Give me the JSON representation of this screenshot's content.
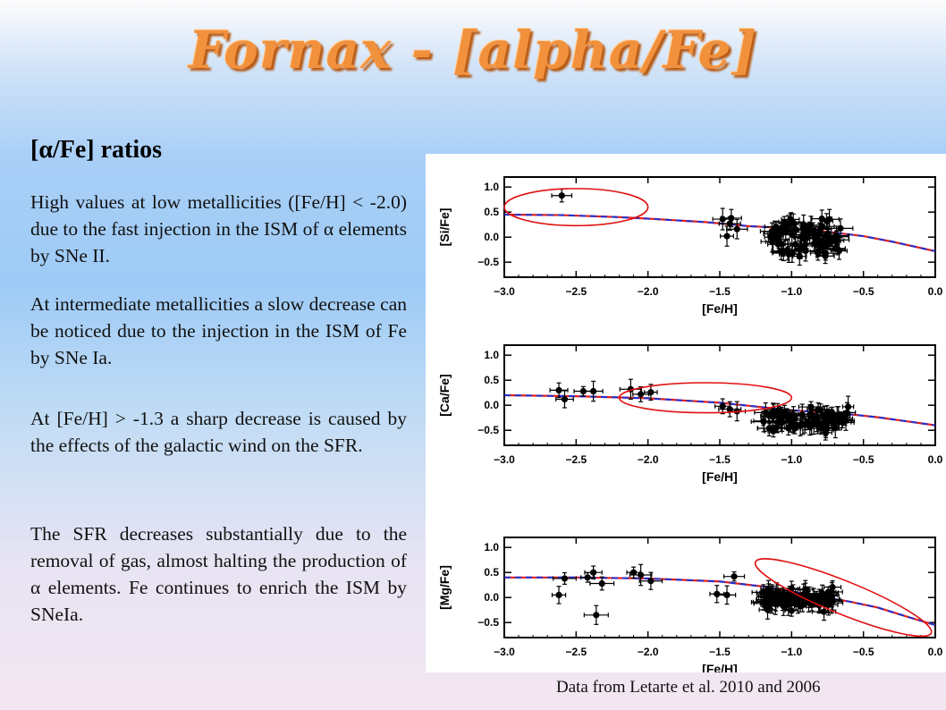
{
  "slide": {
    "title": "Fornax - [alpha/Fe]",
    "subtitle": "[α/Fe] ratios",
    "paragraphs": [
      "High values at low metallicities ([Fe/H] < -2.0) due to the fast injection in the ISM of α elements by SNe II.",
      "At intermediate metallicities a slow decrease can be noticed due to the injection in the ISM of Fe by SNe Ia.",
      "At [Fe/H] > -1.3 a sharp decrease is caused by the effects of the galactic wind on the SFR.",
      "The SFR decreases substantially due to the removal of gas, almost halting the production of α elements. Fe continues to enrich the ISM by SNeIa."
    ],
    "caption": "Data from Letarte et al. 2010 and 2006"
  },
  "chart_data": [
    {
      "type": "scatter",
      "xlabel": "[Fe/H]",
      "ylabel": "[Si/Fe]",
      "xlim": [
        -3.0,
        0.0
      ],
      "ylim": [
        -0.8,
        1.2
      ],
      "xticks": [
        "−3.0",
        "−2.5",
        "−2.0",
        "−1.5",
        "−1.0",
        "−0.5",
        "0.0"
      ],
      "yticks": [
        "1.0",
        "0.5",
        "0.0",
        "−0.5"
      ],
      "model": {
        "x": [
          -3.0,
          -2.6,
          -2.2,
          -2.0,
          -1.6,
          -1.3,
          -1.1,
          -0.9,
          -0.7,
          -0.5,
          -0.3,
          0.0
        ],
        "y": [
          0.45,
          0.44,
          0.4,
          0.37,
          0.3,
          0.22,
          0.19,
          0.15,
          0.09,
          0.02,
          -0.09,
          -0.28
        ]
      },
      "points": [
        [
          -2.6,
          0.83
        ],
        [
          -1.48,
          0.36
        ],
        [
          -1.42,
          0.38
        ],
        [
          -1.45,
          0.02
        ],
        [
          -1.38,
          0.16
        ],
        [
          -1.43,
          0.27
        ]
      ],
      "cluster": {
        "x": [
          -1.15,
          -0.65
        ],
        "y": [
          -0.45,
          0.45
        ],
        "n": 80
      },
      "ellipse": {
        "cx": -2.5,
        "cy": 0.6,
        "rx": 0.5,
        "ry": 0.37
      }
    },
    {
      "type": "scatter",
      "xlabel": "[Fe/H]",
      "ylabel": "[Ca/Fe]",
      "xlim": [
        -3.0,
        0.0
      ],
      "ylim": [
        -0.8,
        1.2
      ],
      "xticks": [
        "−3.0",
        "−2.5",
        "−2.0",
        "−1.5",
        "−1.0",
        "−0.5",
        "0.0"
      ],
      "yticks": [
        "1.0",
        "0.5",
        "0.0",
        "−0.5"
      ],
      "model": {
        "x": [
          -3.0,
          -2.5,
          -2.0,
          -1.5,
          -1.2,
          -1.0,
          -0.8,
          -0.6,
          -0.4,
          0.0
        ],
        "y": [
          0.2,
          0.18,
          0.14,
          0.05,
          -0.04,
          -0.1,
          -0.14,
          -0.18,
          -0.24,
          -0.4
        ]
      },
      "points": [
        [
          -2.62,
          0.3
        ],
        [
          -2.58,
          0.12
        ],
        [
          -2.45,
          0.28
        ],
        [
          -2.38,
          0.28
        ],
        [
          -2.12,
          0.32
        ],
        [
          -2.05,
          0.22
        ],
        [
          -1.98,
          0.26
        ],
        [
          -1.48,
          -0.02
        ],
        [
          -1.43,
          -0.08
        ],
        [
          -1.38,
          -0.12
        ]
      ],
      "cluster": {
        "x": [
          -1.2,
          -0.6
        ],
        "y": [
          -0.55,
          0.0
        ],
        "n": 80
      },
      "ellipse": {
        "cx": -1.6,
        "cy": 0.15,
        "rx": 0.6,
        "ry": 0.3
      }
    },
    {
      "type": "scatter",
      "xlabel": "[Fe/H]",
      "ylabel": "[Mg/Fe]",
      "xlim": [
        -3.0,
        0.0
      ],
      "ylim": [
        -0.8,
        1.2
      ],
      "xticks": [
        "−3.0",
        "−2.5",
        "−2.0",
        "−1.5",
        "−1.0",
        "−0.5",
        "0.0"
      ],
      "yticks": [
        "1.0",
        "0.5",
        "0.0",
        "−0.5"
      ],
      "model": {
        "x": [
          -3.0,
          -2.5,
          -2.0,
          -1.5,
          -1.2,
          -1.0,
          -0.8,
          -0.6,
          -0.4,
          -0.2,
          0.0
        ],
        "y": [
          0.4,
          0.4,
          0.38,
          0.32,
          0.22,
          0.12,
          0.02,
          -0.08,
          -0.2,
          -0.38,
          -0.55
        ]
      },
      "points": [
        [
          -2.62,
          0.05
        ],
        [
          -2.58,
          0.38
        ],
        [
          -2.42,
          0.4
        ],
        [
          -2.38,
          0.5
        ],
        [
          -2.36,
          -0.35
        ],
        [
          -2.32,
          0.28
        ],
        [
          -2.1,
          0.5
        ],
        [
          -2.05,
          0.45
        ],
        [
          -1.98,
          0.33
        ],
        [
          -1.52,
          0.07
        ],
        [
          -1.45,
          0.05
        ],
        [
          -1.4,
          0.42
        ]
      ],
      "cluster": {
        "x": [
          -1.2,
          -0.7
        ],
        "y": [
          -0.3,
          0.25
        ],
        "n": 80
      },
      "ellipse": {
        "cx": -0.64,
        "cy": 0.0,
        "rx": 0.66,
        "ry": 0.33
      }
    }
  ]
}
